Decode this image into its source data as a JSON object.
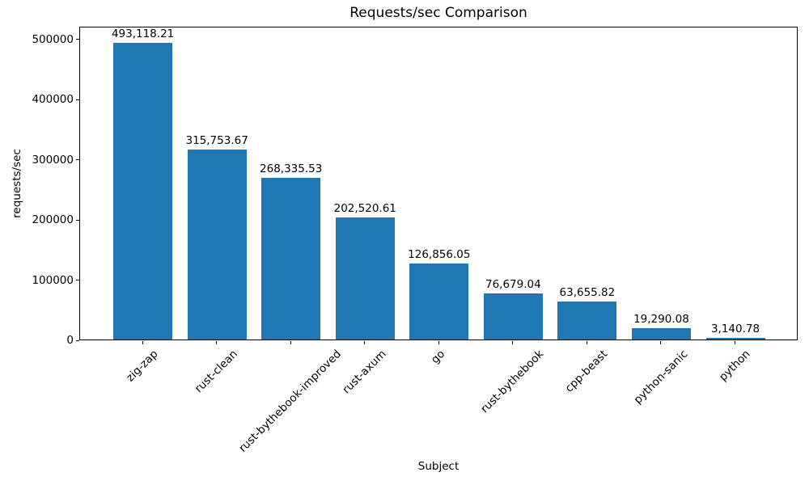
{
  "chart_data": {
    "type": "bar",
    "title": "Requests/sec Comparison",
    "xlabel": "Subject",
    "ylabel": "requests/sec",
    "categories": [
      "zig-zap",
      "rust-clean",
      "rust-bythebook-improved",
      "rust-axum",
      "go",
      "rust-bythebook",
      "cpp-beast",
      "python-sanic",
      "python"
    ],
    "values": [
      493118.21,
      315753.67,
      268335.53,
      202520.61,
      126856.05,
      76679.04,
      63655.82,
      19290.08,
      3140.78
    ],
    "value_labels": [
      "493,118.21",
      "315,753.67",
      "268,335.53",
      "202,520.61",
      "126,856.05",
      "76,679.04",
      "63,655.82",
      "19,290.08",
      "3,140.78"
    ],
    "yticks": {
      "values": [
        0,
        100000,
        200000,
        300000,
        400000,
        500000
      ],
      "labels": [
        "0",
        "100000",
        "200000",
        "300000",
        "400000",
        "500000"
      ]
    },
    "ylim": [
      0,
      521500
    ],
    "bar_color": "#1f77b4",
    "grid": false,
    "legend": "none"
  }
}
